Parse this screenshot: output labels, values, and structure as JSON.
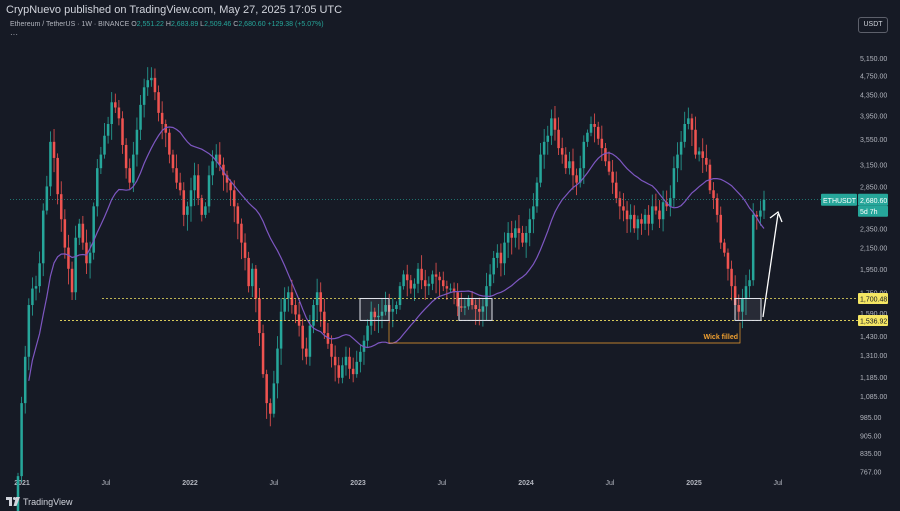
{
  "header": {
    "publisher": "CrypNuevo published on TradingView.com, May 27, 2025 17:05 UTC",
    "symbol": "Ethereum / TetherUS · 1W · BINANCE",
    "ohlc": [
      {
        "label": "O",
        "value": "2,551.22"
      },
      {
        "label": "H",
        "value": "2,683.89"
      },
      {
        "label": "L",
        "value": "2,509.46"
      },
      {
        "label": "C",
        "value": "2,680.60"
      }
    ],
    "change": "+129.38 (+5.07%)",
    "more": "···",
    "currency": "USDT"
  },
  "footer": {
    "brand": "TradingView"
  },
  "chart_data": {
    "type": "candlestick",
    "y_scale": "log",
    "ylim": [
      720,
      5700
    ],
    "y_ticks": [
      "5,150.00",
      "4,750.00",
      "4,350.00",
      "3,950.00",
      "3,550.00",
      "3,150.00",
      "2,850.00",
      "2,550.00",
      "2,350.00",
      "2,150.00",
      "1,950.00",
      "1,750.00",
      "1,590.00",
      "1,430.00",
      "1,310.00",
      "1,185.00",
      "1,085.00",
      "985.00",
      "905.00",
      "835.00",
      "767.00"
    ],
    "x_ticks": [
      "2021",
      "Jul",
      "2022",
      "Jul",
      "2023",
      "Jul",
      "2024",
      "Jul",
      "2025",
      "Jul"
    ],
    "price_labels": [
      {
        "symbol": "ETHUSDT",
        "price": "2,680.60",
        "countdown": "5d 7h",
        "value": 2680.6,
        "color": "#26a69a"
      },
      {
        "text": "1,700.48",
        "value": 1700.48,
        "color": "#f5e663"
      },
      {
        "text": "1,536.92",
        "value": 1536.92,
        "color": "#f5e663"
      }
    ],
    "annotations": [
      {
        "text": "Wick filled",
        "color": "#f0a030"
      }
    ],
    "colors": {
      "up": "#26a69a",
      "down": "#ef5350",
      "ma": "#7e57c2",
      "level": "#f5e663",
      "box": "#e0e3eb"
    },
    "levels": [
      1700.48,
      1536.92
    ],
    "close_series": [
      750,
      1050,
      1300,
      1650,
      1780,
      1800,
      2000,
      2550,
      2850,
      3500,
      3250,
      2750,
      2450,
      2150,
      1950,
      1750,
      2250,
      2400,
      2200,
      2000,
      2100,
      2600,
      3100,
      3300,
      3600,
      3800,
      4200,
      4100,
      3900,
      3450,
      3100,
      2900,
      3300,
      3700,
      4150,
      4500,
      4650,
      4700,
      4400,
      4000,
      3800,
      3650,
      3300,
      3100,
      2900,
      2800,
      2500,
      2600,
      2800,
      3000,
      2700,
      2500,
      2600,
      3000,
      3200,
      3300,
      3150,
      3000,
      2900,
      2800,
      2600,
      2400,
      2200,
      2050,
      1800,
      1950,
      1700,
      1450,
      1200,
      1050,
      1000,
      1150,
      1350,
      1600,
      1700,
      1750,
      1650,
      1580,
      1500,
      1350,
      1300,
      1500,
      1650,
      1750,
      1600,
      1450,
      1380,
      1300,
      1250,
      1180,
      1250,
      1300,
      1230,
      1200,
      1270,
      1330,
      1400,
      1500,
      1600,
      1560,
      1570,
      1600,
      1650,
      1600,
      1620,
      1650,
      1800,
      1900,
      1850,
      1780,
      1820,
      1950,
      1850,
      1800,
      1820,
      1900,
      1880,
      1850,
      1800,
      1780,
      1780,
      1750,
      1640,
      1630,
      1640,
      1700,
      1650,
      1620,
      1600,
      1640,
      1800,
      1900,
      2050,
      2100,
      2000,
      2200,
      2300,
      2250,
      2350,
      2300,
      2200,
      2300,
      2450,
      2600,
      2900,
      3300,
      3500,
      3600,
      3900,
      3700,
      3400,
      3300,
      3100,
      3200,
      3000,
      2900,
      3100,
      3500,
      3650,
      3800,
      3750,
      3550,
      3400,
      3200,
      3050,
      2900,
      2700,
      2600,
      2550,
      2450,
      2500,
      2350,
      2450,
      2400,
      2500,
      2400,
      2600,
      2550,
      2450,
      2650,
      2600,
      2700,
      3100,
      3300,
      3500,
      3800,
      3900,
      3700,
      3300,
      3350,
      3250,
      3150,
      2800,
      2700,
      2500,
      2200,
      2100,
      1950,
      1800,
      1650,
      1600,
      1700,
      1800,
      1850,
      2500,
      2480,
      2550,
      2680.6
    ]
  }
}
